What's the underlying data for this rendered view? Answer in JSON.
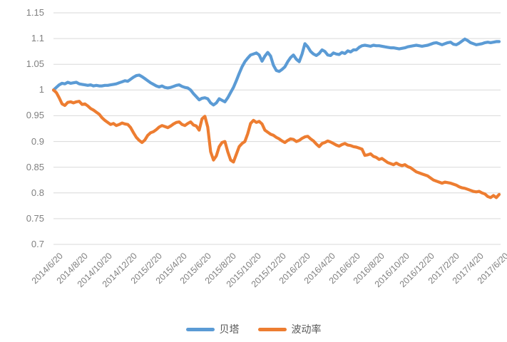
{
  "chart_data": {
    "type": "line",
    "title": "",
    "xlabel": "",
    "ylabel": "",
    "ylim": [
      0.7,
      1.15
    ],
    "grid": "horizontal",
    "legend_position": "bottom-center",
    "y_tick_labels": [
      "1.15",
      "1.1",
      "1.05",
      "1",
      "0.95",
      "0.9",
      "0.85",
      "0.8",
      "0.75",
      "0.7"
    ],
    "y_tick_values": [
      1.15,
      1.1,
      1.05,
      1.0,
      0.95,
      0.9,
      0.85,
      0.8,
      0.75,
      0.7
    ],
    "x_tick_labels": [
      "2014/6/20",
      "2014/8/20",
      "2014/10/20",
      "2014/12/20",
      "2015/2/20",
      "2015/4/20",
      "2015/6/20",
      "2015/8/20",
      "2015/10/20",
      "2015/12/20",
      "2016/2/20",
      "2016/4/20",
      "2016/6/20",
      "2016/8/20",
      "2016/10/20",
      "2016/12/20",
      "2017/2/20",
      "2017/4/20",
      "2017/6/20"
    ],
    "x_frequency": "weekly",
    "series": [
      {
        "name": "贝塔",
        "color": "#5B9BD5",
        "values": [
          1.0,
          1.005,
          1.01,
          1.013,
          1.012,
          1.015,
          1.013,
          1.014,
          1.015,
          1.012,
          1.011,
          1.01,
          1.009,
          1.01,
          1.008,
          1.009,
          1.008,
          1.008,
          1.009,
          1.009,
          1.01,
          1.011,
          1.012,
          1.014,
          1.016,
          1.018,
          1.017,
          1.021,
          1.025,
          1.028,
          1.029,
          1.026,
          1.022,
          1.018,
          1.014,
          1.011,
          1.008,
          1.006,
          1.008,
          1.005,
          1.004,
          1.005,
          1.007,
          1.009,
          1.01,
          1.007,
          1.005,
          1.004,
          1.0,
          0.993,
          0.987,
          0.981,
          0.984,
          0.985,
          0.983,
          0.975,
          0.971,
          0.975,
          0.983,
          0.98,
          0.977,
          0.985,
          0.995,
          1.005,
          1.018,
          1.032,
          1.045,
          1.055,
          1.062,
          1.068,
          1.07,
          1.072,
          1.068,
          1.056,
          1.066,
          1.073,
          1.066,
          1.048,
          1.038,
          1.036,
          1.04,
          1.045,
          1.055,
          1.063,
          1.068,
          1.06,
          1.055,
          1.07,
          1.09,
          1.084,
          1.075,
          1.07,
          1.067,
          1.071,
          1.078,
          1.075,
          1.068,
          1.067,
          1.072,
          1.07,
          1.069,
          1.073,
          1.071,
          1.076,
          1.074,
          1.078,
          1.078,
          1.083,
          1.086,
          1.087,
          1.086,
          1.085,
          1.087,
          1.086,
          1.086,
          1.085,
          1.084,
          1.083,
          1.082,
          1.082,
          1.081,
          1.08,
          1.081,
          1.082,
          1.084,
          1.085,
          1.086,
          1.087,
          1.086,
          1.085,
          1.086,
          1.087,
          1.089,
          1.091,
          1.092,
          1.09,
          1.088,
          1.09,
          1.092,
          1.093,
          1.089,
          1.088,
          1.091,
          1.095,
          1.099,
          1.096,
          1.092,
          1.09,
          1.088,
          1.089,
          1.09,
          1.092,
          1.093,
          1.092,
          1.093,
          1.094,
          1.094
        ]
      },
      {
        "name": "波动率",
        "color": "#ED7D31",
        "values": [
          1.0,
          0.995,
          0.985,
          0.973,
          0.97,
          0.976,
          0.977,
          0.975,
          0.977,
          0.978,
          0.972,
          0.973,
          0.969,
          0.964,
          0.961,
          0.957,
          0.953,
          0.946,
          0.941,
          0.937,
          0.933,
          0.935,
          0.931,
          0.933,
          0.936,
          0.934,
          0.933,
          0.927,
          0.917,
          0.908,
          0.902,
          0.898,
          0.903,
          0.912,
          0.917,
          0.919,
          0.923,
          0.928,
          0.931,
          0.929,
          0.927,
          0.93,
          0.934,
          0.937,
          0.938,
          0.933,
          0.931,
          0.935,
          0.938,
          0.932,
          0.93,
          0.922,
          0.944,
          0.949,
          0.928,
          0.88,
          0.864,
          0.872,
          0.89,
          0.898,
          0.9,
          0.88,
          0.864,
          0.86,
          0.875,
          0.89,
          0.896,
          0.9,
          0.915,
          0.935,
          0.941,
          0.937,
          0.939,
          0.934,
          0.922,
          0.918,
          0.914,
          0.912,
          0.908,
          0.905,
          0.901,
          0.898,
          0.902,
          0.905,
          0.904,
          0.9,
          0.902,
          0.906,
          0.909,
          0.91,
          0.905,
          0.901,
          0.895,
          0.89,
          0.896,
          0.898,
          0.901,
          0.899,
          0.896,
          0.893,
          0.891,
          0.894,
          0.896,
          0.893,
          0.892,
          0.89,
          0.889,
          0.887,
          0.885,
          0.873,
          0.874,
          0.876,
          0.871,
          0.869,
          0.865,
          0.867,
          0.863,
          0.859,
          0.857,
          0.855,
          0.858,
          0.855,
          0.853,
          0.855,
          0.851,
          0.849,
          0.845,
          0.841,
          0.839,
          0.837,
          0.835,
          0.833,
          0.829,
          0.825,
          0.823,
          0.821,
          0.819,
          0.821,
          0.82,
          0.819,
          0.817,
          0.815,
          0.812,
          0.81,
          0.809,
          0.807,
          0.805,
          0.803,
          0.802,
          0.803,
          0.8,
          0.798,
          0.793,
          0.791,
          0.795,
          0.791,
          0.797
        ]
      }
    ]
  },
  "colors": {
    "background": "#FFFFFF",
    "gridline": "#D9D9D9",
    "tick_label": "#808080",
    "legend_text": "#595959"
  }
}
